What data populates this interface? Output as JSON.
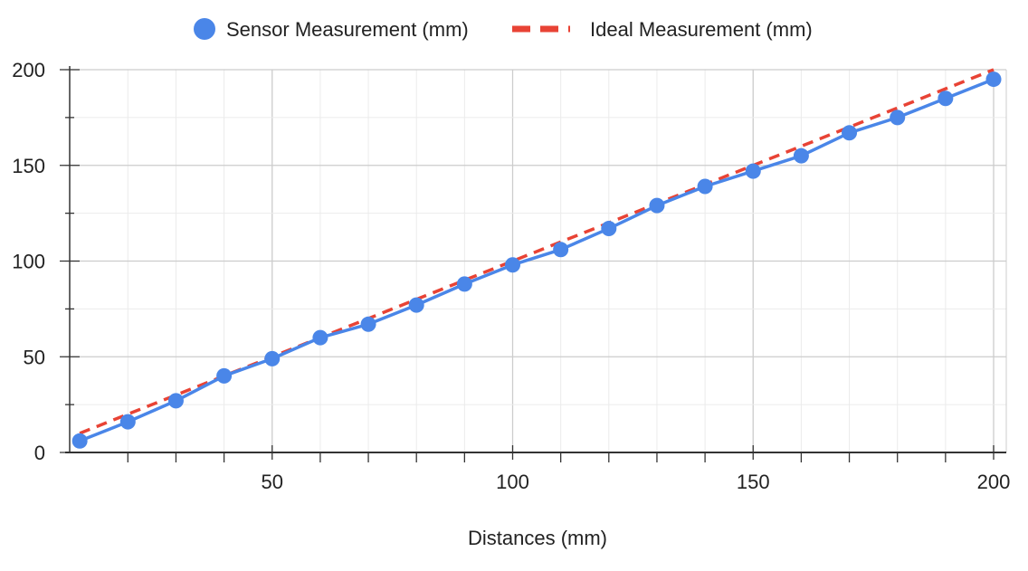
{
  "chart_data": {
    "type": "line",
    "title": "",
    "xlabel": "Distances (mm)",
    "ylabel": "",
    "xlim": [
      10,
      200
    ],
    "ylim": [
      0,
      200
    ],
    "x_ticks": [
      50,
      100,
      150,
      200
    ],
    "y_ticks": [
      0,
      50,
      100,
      150,
      200
    ],
    "grid": true,
    "legend_position": "top",
    "x": [
      10,
      20,
      30,
      40,
      50,
      60,
      70,
      80,
      90,
      100,
      110,
      120,
      130,
      140,
      150,
      160,
      170,
      180,
      190,
      200
    ],
    "series": [
      {
        "name": "Sensor Measurement (mm)",
        "style": "solid line with markers",
        "color": "#4a86e8",
        "values": [
          6,
          16,
          27,
          40,
          49,
          60,
          67,
          77,
          88,
          98,
          106,
          117,
          129,
          139,
          147,
          155,
          167,
          175,
          185,
          195
        ]
      },
      {
        "name": "Ideal Measurement (mm)",
        "style": "dashed line",
        "color": "#e84335",
        "values": [
          10,
          20,
          30,
          40,
          50,
          60,
          70,
          80,
          90,
          100,
          110,
          120,
          130,
          140,
          150,
          160,
          170,
          180,
          190,
          200
        ]
      }
    ]
  }
}
